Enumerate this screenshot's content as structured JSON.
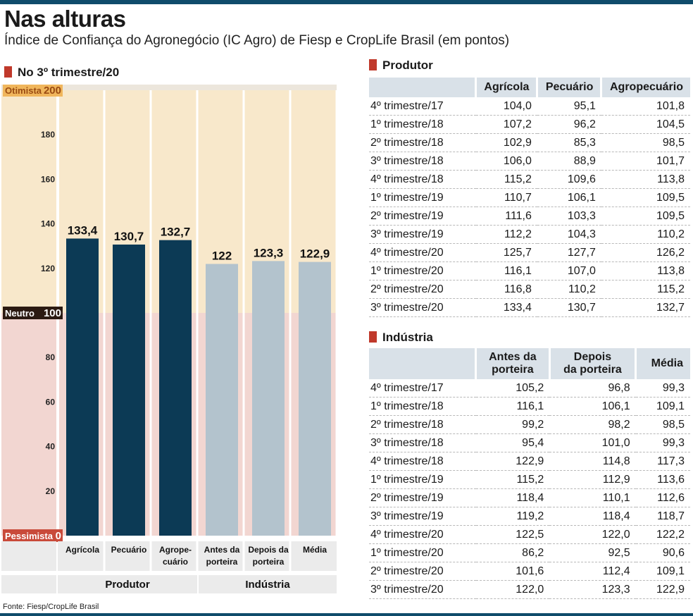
{
  "header": {
    "title": "Nas alturas",
    "subtitle": "Índice de Confiança do Agronegócio (IC Agro) de Fiesp e CropLife Brasil (em pontos)"
  },
  "colors": {
    "accent_bar": "#0f4c6b",
    "section_square": "#c0392b",
    "optimist_zone": "#f8e8cb",
    "pessimist_zone": "#f2d6d1",
    "producer_bars": "#0c3a55",
    "industry_bars": "#b3c3cd"
  },
  "chart_data": {
    "type": "bar",
    "title": "No 3º trimestre/20",
    "categories": [
      "Agrícola",
      "Pecuário",
      "Agropecuário",
      "Antes da porteira",
      "Depois da porteira",
      "Média"
    ],
    "category_lines": [
      [
        "Agrícola"
      ],
      [
        "Pecuário"
      ],
      [
        "Agrope-",
        "cuário"
      ],
      [
        "Antes da",
        "porteira"
      ],
      [
        "Depois da",
        "porteira"
      ],
      [
        "Média"
      ]
    ],
    "values": [
      133.4,
      130.7,
      132.7,
      122,
      123.3,
      122.9
    ],
    "value_labels": [
      "133,4",
      "130,7",
      "132,7",
      "122",
      "123,3",
      "122,9"
    ],
    "groups": [
      {
        "name": "Produtor",
        "categories": [
          "Agrícola",
          "Pecuário",
          "Agropecuário"
        ]
      },
      {
        "name": "Indústria",
        "categories": [
          "Antes da porteira",
          "Depois da porteira",
          "Média"
        ]
      }
    ],
    "ylim": [
      0,
      200
    ],
    "yticks": [
      20,
      40,
      60,
      80,
      120,
      140,
      160,
      180
    ],
    "reference_labels": [
      {
        "label": "Otimista",
        "value": 200,
        "value_label": "200"
      },
      {
        "label": "Neutro",
        "value": 100,
        "value_label": "100"
      },
      {
        "label": "Pessimista",
        "value": 0,
        "value_label": "0"
      }
    ],
    "grid": false,
    "legend": "none"
  },
  "tables": {
    "produtor": {
      "title": "Produtor",
      "columns": [
        "Agrícola",
        "Pecuário",
        "Agropecuário"
      ],
      "rows": [
        {
          "label": "4º trimestre/17",
          "values": [
            "104,0",
            "95,1",
            "101,8"
          ]
        },
        {
          "label": "1º trimestre/18",
          "values": [
            "107,2",
            "96,2",
            "104,5"
          ]
        },
        {
          "label": "2º trimestre/18",
          "values": [
            "102,9",
            "85,3",
            "98,5"
          ]
        },
        {
          "label": "3º trimestre/18",
          "values": [
            "106,0",
            "88,9",
            "101,7"
          ]
        },
        {
          "label": "4º trimestre/18",
          "values": [
            "115,2",
            "109,6",
            "113,8"
          ]
        },
        {
          "label": "1º trimestre/19",
          "values": [
            "110,7",
            "106,1",
            "109,5"
          ]
        },
        {
          "label": "2º trimestre/19",
          "values": [
            "111,6",
            "103,3",
            "109,5"
          ]
        },
        {
          "label": "3º trimestre/19",
          "values": [
            "112,2",
            "104,3",
            "110,2"
          ]
        },
        {
          "label": "4º trimestre/20",
          "values": [
            "125,7",
            "127,7",
            "126,2"
          ]
        },
        {
          "label": "1º trimestre/20",
          "values": [
            "116,1",
            "107,0",
            "113,8"
          ]
        },
        {
          "label": "2º trimestre/20",
          "values": [
            "116,8",
            "110,2",
            "115,2"
          ]
        },
        {
          "label": "3º trimestre/20",
          "values": [
            "133,4",
            "130,7",
            "132,7"
          ]
        }
      ]
    },
    "industria": {
      "title": "Indústria",
      "columns": [
        [
          "Antes da",
          "porteira"
        ],
        [
          "Depois",
          "da porteira"
        ],
        [
          "Média"
        ]
      ],
      "rows": [
        {
          "label": "4º trimestre/17",
          "values": [
            "105,2",
            "96,8",
            "99,3"
          ]
        },
        {
          "label": "1º trimestre/18",
          "values": [
            "116,1",
            "106,1",
            "109,1"
          ]
        },
        {
          "label": "2º trimestre/18",
          "values": [
            "99,2",
            "98,2",
            "98,5"
          ]
        },
        {
          "label": "3º trimestre/18",
          "values": [
            "95,4",
            "101,0",
            "99,3"
          ]
        },
        {
          "label": "4º trimestre/18",
          "values": [
            "122,9",
            "114,8",
            "117,3"
          ]
        },
        {
          "label": "1º trimestre/19",
          "values": [
            "115,2",
            "112,9",
            "113,6"
          ]
        },
        {
          "label": "2º trimestre/19",
          "values": [
            "118,4",
            "110,1",
            "112,6"
          ]
        },
        {
          "label": "3º trimestre/19",
          "values": [
            "119,2",
            "118,4",
            "118,7"
          ]
        },
        {
          "label": "4º trimestre/20",
          "values": [
            "122,5",
            "122,0",
            "122,2"
          ]
        },
        {
          "label": "1º trimestre/20",
          "values": [
            "86,2",
            "92,5",
            "90,6"
          ]
        },
        {
          "label": "2º trimestre/20",
          "values": [
            "101,6",
            "112,4",
            "109,1"
          ]
        },
        {
          "label": "3º trimestre/20",
          "values": [
            "122,0",
            "123,3",
            "122,9"
          ]
        }
      ]
    }
  },
  "source": "Fonte: Fiesp/CropLife Brasil"
}
